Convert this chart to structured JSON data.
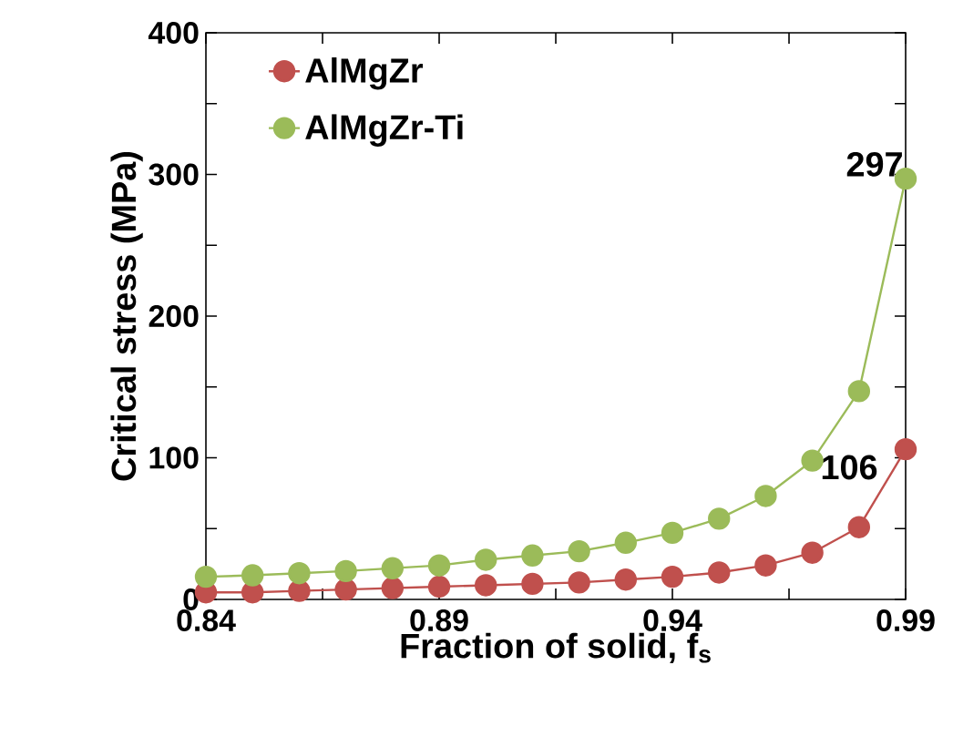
{
  "chart_data": {
    "type": "line",
    "xlabel": "Fraction of solid, f$_{s}$",
    "ylabel": "Critical stress (MPa)",
    "x": [
      0.84,
      0.85,
      0.86,
      0.87,
      0.88,
      0.89,
      0.9,
      0.91,
      0.92,
      0.93,
      0.94,
      0.95,
      0.96,
      0.97,
      0.98,
      0.99
    ],
    "series": [
      {
        "name": "AlMgZr",
        "color": "#c0504d",
        "values": [
          5,
          5,
          6,
          7,
          8,
          9,
          10,
          11,
          12,
          14,
          16,
          19,
          24,
          33,
          51,
          106
        ]
      },
      {
        "name": "AlMgZr-Ti",
        "color": "#9bbb59",
        "values": [
          16,
          17,
          18.5,
          20,
          22,
          24,
          28,
          31,
          34,
          40,
          47,
          57,
          73,
          98,
          147,
          297
        ]
      }
    ],
    "xlim": [
      0.84,
      0.99
    ],
    "xticks": [
      0.84,
      {
        "value": 0.865,
        "label": null
      },
      0.89,
      {
        "value": 0.915,
        "label": null
      },
      0.94,
      {
        "value": 0.965,
        "label": null
      },
      0.99
    ],
    "ylim": [
      0,
      400
    ],
    "yticks": [
      0,
      {
        "value": 50,
        "label": null
      },
      100,
      {
        "value": 150,
        "label": null
      },
      200,
      {
        "value": 250,
        "label": null
      },
      300,
      {
        "value": 350,
        "label": null
      },
      400
    ],
    "annotations": [
      {
        "text": "297",
        "x": 0.99,
        "y": 297
      },
      {
        "text": "106",
        "x": 0.99,
        "y": 106
      }
    ],
    "legend": "top left",
    "marker": "circle",
    "line_style": "solid",
    "grid": false
  }
}
